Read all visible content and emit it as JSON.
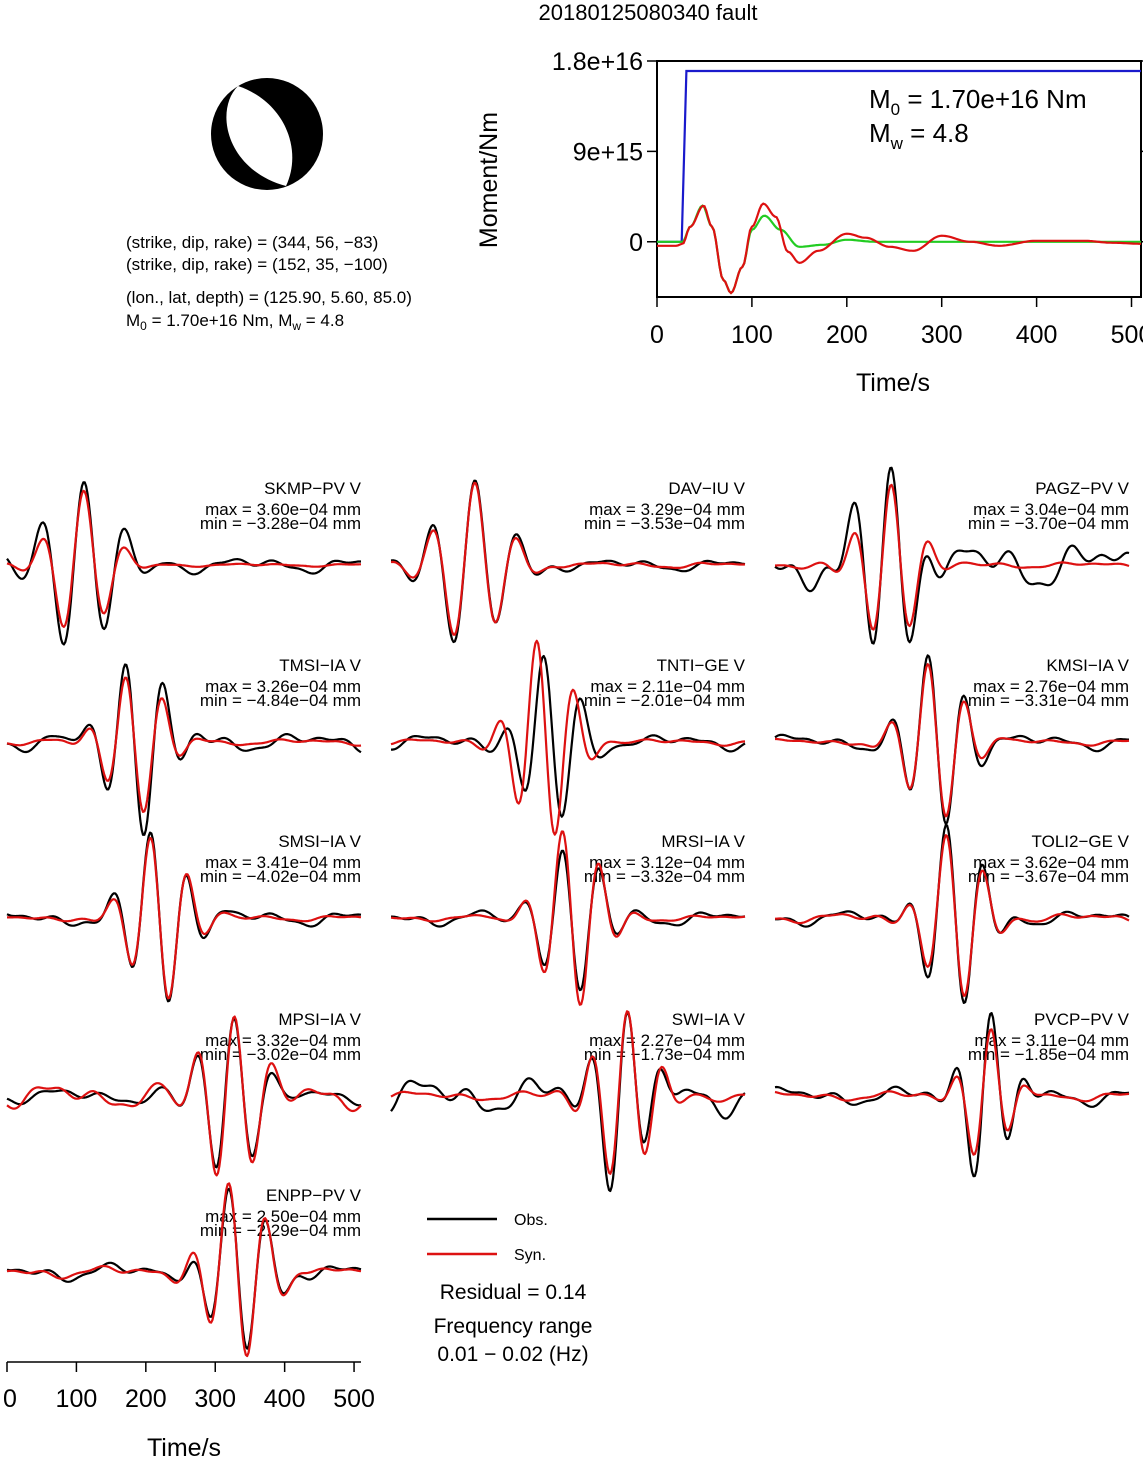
{
  "title": "20180125080340 fault",
  "mechanism": {
    "plane1": "(strike, dip, rake) = (344, 56, −83)",
    "plane2": "(strike, dip, rake) = (152, 35, −100)",
    "location": "(lon., lat, depth) = (125.90, 5.60, 85.0)",
    "m0_main": "M",
    "m0_sub": "0",
    "m0_rest": " = 1.70e+16 Nm, M",
    "mw_sub": "w",
    "mw_rest": " = 4.8"
  },
  "colors": {
    "observed": "#000000",
    "synthetic": "#dd1111",
    "moment": "#1a1acc",
    "moment_rate_a": "#22cc22",
    "moment_rate_b": "#dd1111"
  },
  "chart_data": [
    {
      "type": "line",
      "name": "moment_function",
      "xlabel": "Time/s",
      "ylabel": "Moment/Nm",
      "xlim": [
        0,
        510
      ],
      "ylim": [
        -5500000000000000.0,
        1.8e+16
      ],
      "x_ticks": [
        0,
        100,
        200,
        300,
        400,
        500
      ],
      "y_ticks": [
        0,
        9000000000000000.0,
        1.8e+16
      ],
      "y_tick_labels": [
        "0",
        "9e+15",
        "1.8e+16"
      ],
      "annotation": {
        "m0_label": "M",
        "m0_sub": "0",
        "m0_value": " = 1.70e+16 Nm",
        "mw_label": "M",
        "mw_sub": "w",
        "mw_value": " = 4.8"
      },
      "series": [
        {
          "name": "cumulative moment",
          "x": [
            0,
            26,
            31,
            510
          ],
          "y": [
            0,
            0,
            1.7e+16,
            1.7e+16
          ]
        },
        {
          "name": "moment rate (smoothed)",
          "x": [
            0,
            27,
            35,
            48,
            58,
            70,
            78,
            90,
            100,
            113,
            130,
            150,
            175,
            200,
            230,
            260,
            300,
            510
          ],
          "y": [
            0,
            0,
            1500000000000000.0,
            3600000000000000.0,
            1500000000000000.0,
            -3800000000000000.0,
            -5100000000000000.0,
            -2500000000000000.0,
            1200000000000000.0,
            2600000000000000.0,
            1200000000000000.0,
            -500000000000000.0,
            -300000000000000.0,
            200000000000000.0,
            0,
            0,
            0,
            0
          ]
        },
        {
          "name": "moment rate",
          "x": [
            0,
            20,
            27,
            35,
            49,
            58,
            70,
            78,
            90,
            100,
            112,
            125,
            138,
            150,
            170,
            200,
            220,
            245,
            270,
            300,
            330,
            360,
            400,
            450,
            480,
            510
          ],
          "y": [
            -400000000000000.0,
            -400000000000000.0,
            -200000000000000.0,
            1500000000000000.0,
            3600000000000000.0,
            1500000000000000.0,
            -3800000000000000.0,
            -5100000000000000.0,
            -2500000000000000.0,
            1500000000000000.0,
            3800000000000000.0,
            2500000000000000.0,
            -1000000000000000.0,
            -2100000000000000.0,
            -900000000000000.0,
            800000000000000.0,
            400000000000000.0,
            -500000000000000.0,
            -900000000000000.0,
            600000000000000.0,
            0,
            -400000000000000.0,
            100000000000000.0,
            100000000000000.0,
            -100000000000000.0,
            -200000000000000.0
          ]
        }
      ]
    },
    {
      "type": "line",
      "name": "waveform_comparison",
      "xlabel": "Time/s",
      "xlim": [
        0,
        510
      ],
      "x_ticks": [
        0,
        100,
        200,
        300,
        400,
        500
      ],
      "legend": [
        "Obs.",
        "Syn."
      ],
      "residual": "Residual = 0.14",
      "frequency_label": "Frequency range",
      "frequency_value": "0.01 − 0.02 (Hz)",
      "stations": [
        {
          "name": "SKMP−PV V",
          "max": "max = 3.60e−04 mm",
          "min": "min = −3.28e−04 mm",
          "max_val": 0.00036,
          "min_val": -0.000328,
          "obs": {
            "t0": 105,
            "p": 62,
            "a": 0.99,
            "o": -0.6,
            "s": 1.05,
            "n": 0.05,
            "ns": 1.3
          },
          "syn": {
            "t0": 105,
            "p": 62,
            "a": 0.85,
            "o": -0.6,
            "s": 0.85,
            "n": 0.01,
            "ns": 1.1
          }
        },
        {
          "name": "DAV−IU V",
          "max": "max = 3.29e−04 mm",
          "min": "min = −3.53e−04 mm",
          "max_val": 0.000329,
          "min_val": -0.000353,
          "obs": {
            "t0": 115,
            "p": 62,
            "a": 0.93,
            "o": -0.6,
            "s": 1.05,
            "n": 0.04,
            "ns": 2.1
          },
          "syn": {
            "t0": 115,
            "p": 62,
            "a": 0.9,
            "o": -0.6,
            "s": 1.0,
            "n": 0.02,
            "ns": 2.5
          }
        },
        {
          "name": "PAGZ−PV V",
          "max": "max = 3.04e−04 mm",
          "min": "min = −3.70e−04 mm",
          "max_val": 0.000304,
          "min_val": -0.00037,
          "obs": {
            "t0": 165,
            "p": 55,
            "a": 0.99,
            "o": -0.3,
            "s": 1.05,
            "n": 0.16,
            "ns": 3.3
          },
          "syn": {
            "t0": 165,
            "p": 55,
            "a": 0.9,
            "o": -0.3,
            "s": 0.95,
            "n": 0.02,
            "ns": 3.9
          }
        },
        {
          "name": "TMSI−IA V",
          "max": "max = 3.26e−04 mm",
          "min": "min = −4.84e−04 mm",
          "max_val": 0.000326,
          "min_val": -0.000484,
          "obs": {
            "t0": 185,
            "p": 55,
            "a": 0.99,
            "o": 1.7,
            "s": 1.0,
            "n": 0.06,
            "ns": 4.4
          },
          "syn": {
            "t0": 185,
            "p": 55,
            "a": 0.8,
            "o": 1.7,
            "s": 0.95,
            "n": 0.02,
            "ns": 4.8
          }
        },
        {
          "name": "TNTI−GE V",
          "max": "max = 2.11e−04 mm",
          "min": "min = −2.01e−04 mm",
          "max_val": 0.000211,
          "min_val": -0.000201,
          "obs": {
            "t0": 230,
            "p": 55,
            "a": 0.95,
            "o": 1.2,
            "s": 0.95,
            "n": 0.05,
            "ns": 5.5
          },
          "syn": {
            "t0": 220,
            "p": 55,
            "a": 1.15,
            "o": 1.2,
            "s": 0.95,
            "n": 0.02,
            "ns": 5.9
          }
        },
        {
          "name": "KMSI−IA V",
          "max": "max = 2.76e−04 mm",
          "min": "min = −3.31e−04 mm",
          "max_val": 0.000276,
          "min_val": -0.000331,
          "obs": {
            "t0": 232,
            "p": 55,
            "a": 0.99,
            "o": 1.4,
            "s": 0.95,
            "n": 0.05,
            "ns": 6.6
          },
          "syn": {
            "t0": 232,
            "p": 55,
            "a": 0.9,
            "o": 1.4,
            "s": 0.95,
            "n": 0.02,
            "ns": 7.0
          }
        },
        {
          "name": "SMSI−IA V",
          "max": "max = 3.41e−04 mm",
          "min": "min = −4.02e−04 mm",
          "max_val": 0.000341,
          "min_val": -0.000402,
          "obs": {
            "t0": 220,
            "p": 55,
            "a": 0.99,
            "o": 1.6,
            "s": 0.95,
            "n": 0.05,
            "ns": 7.7
          },
          "syn": {
            "t0": 220,
            "p": 55,
            "a": 0.95,
            "o": 1.6,
            "s": 0.95,
            "n": 0.02,
            "ns": 8.1
          }
        },
        {
          "name": "MRSI−IA V",
          "max": "max = 3.12e−04 mm",
          "min": "min = −3.32e−04 mm",
          "max_val": 0.000312,
          "min_val": -0.000332,
          "obs": {
            "t0": 260,
            "p": 55,
            "a": 0.9,
            "o": 1.6,
            "s": 0.95,
            "n": 0.05,
            "ns": 8.8
          },
          "syn": {
            "t0": 260,
            "p": 55,
            "a": 1.05,
            "o": 1.6,
            "s": 0.95,
            "n": 0.02,
            "ns": 9.2
          }
        },
        {
          "name": "TOLI2−GE V",
          "max": "max = 3.62e−04 mm",
          "min": "min = −3.67e−04 mm",
          "max_val": 0.000362,
          "min_val": -0.000367,
          "obs": {
            "t0": 260,
            "p": 55,
            "a": 1.05,
            "o": 1.6,
            "s": 0.95,
            "n": 0.05,
            "ns": 9.9
          },
          "syn": {
            "t0": 260,
            "p": 55,
            "a": 0.95,
            "o": 1.6,
            "s": 0.95,
            "n": 0.03,
            "ns": 10.3
          }
        },
        {
          "name": "MPSI−IA V",
          "max": "max = 3.32e−04 mm",
          "min": "min = −3.02e−04 mm",
          "max_val": 0.000332,
          "min_val": -0.000302,
          "obs": {
            "t0": 320,
            "p": 55,
            "a": 0.95,
            "o": -0.9,
            "s": 0.95,
            "n": 0.05,
            "ns": 11.0
          },
          "syn": {
            "t0": 320,
            "p": 55,
            "a": 1.05,
            "o": -0.9,
            "s": 0.95,
            "n": 0.08,
            "ns": 11.4
          }
        },
        {
          "name": "SWI−IA V",
          "max": "max = 2.27e−04 mm",
          "min": "min = −1.73e−04 mm",
          "max_val": 0.000227,
          "min_val": -0.000173,
          "obs": {
            "t0": 335,
            "p": 52,
            "a": 0.99,
            "o": -0.7,
            "s": 0.95,
            "n": 0.12,
            "ns": 12.1
          },
          "syn": {
            "t0": 335,
            "p": 52,
            "a": 0.95,
            "o": -0.7,
            "s": 1.05,
            "n": 0.03,
            "ns": 12.5
          }
        },
        {
          "name": "PVCP−PV V",
          "max": "max = 3.11e−04 mm",
          "min": "min = −1.85e−04 mm",
          "max_val": 0.000311,
          "min_val": -0.000185,
          "obs": {
            "t0": 305,
            "p": 52,
            "a": 0.95,
            "o": -0.8,
            "s": 0.8,
            "n": 0.06,
            "ns": 13.2
          },
          "syn": {
            "t0": 305,
            "p": 52,
            "a": 0.75,
            "o": -0.8,
            "s": 0.8,
            "n": 0.03,
            "ns": 13.6
          }
        },
        {
          "name": "ENPP−PV V",
          "max": "max = 2.50e−04 mm",
          "min": "min = −2.29e−04 mm",
          "max_val": 0.00025,
          "min_val": -0.000229,
          "obs": {
            "t0": 332,
            "p": 55,
            "a": 0.9,
            "o": 1.5,
            "s": 1.0,
            "n": 0.06,
            "ns": 14.3
          },
          "syn": {
            "t0": 332,
            "p": 55,
            "a": 1.0,
            "o": 1.5,
            "s": 1.0,
            "n": 0.04,
            "ns": 14.7
          }
        }
      ]
    }
  ]
}
